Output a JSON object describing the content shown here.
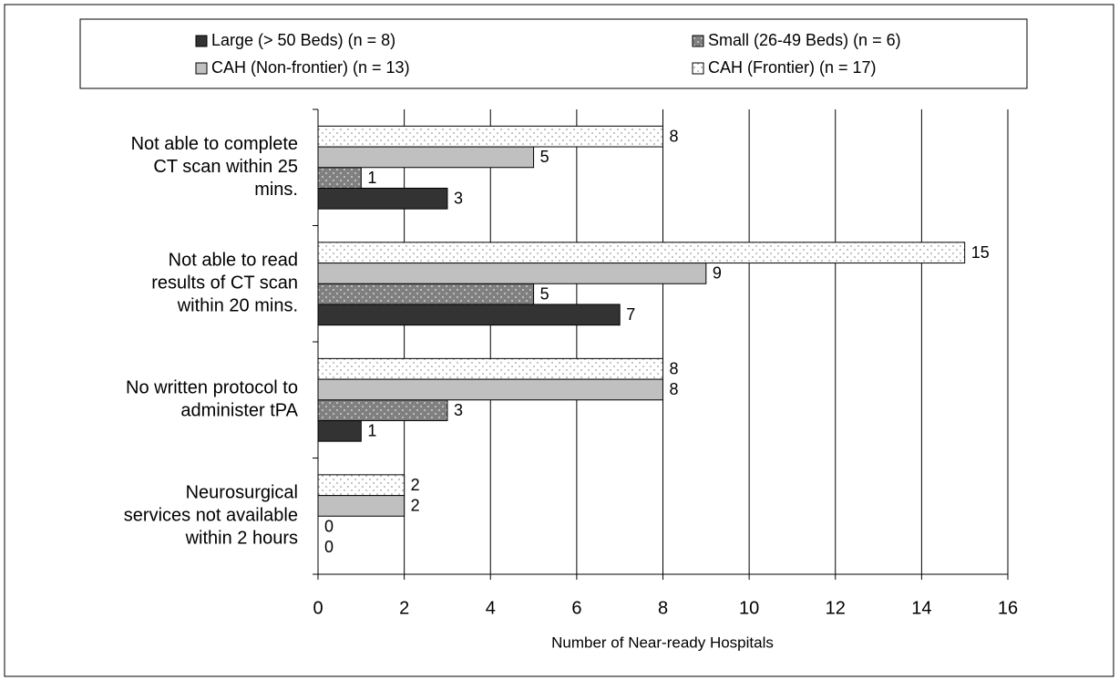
{
  "chart_data": {
    "type": "barh",
    "xlabel": "Number of Near-ready Hospitals",
    "categories": [
      [
        "Not able to complete",
        "CT scan within 25",
        "mins."
      ],
      [
        "Not able to read",
        "results of CT scan",
        "within 20 mins."
      ],
      [
        "No written protocol to",
        "administer tPA"
      ],
      [
        "Neurosurgical",
        "services not available",
        "within 2 hours"
      ]
    ],
    "series": [
      {
        "name": "Large (> 50 Beds) (n = 8)",
        "color": "#333333",
        "values": [
          3,
          7,
          1,
          0
        ]
      },
      {
        "name": "Small (26-49 Beds) (n = 6)",
        "color": "#808080",
        "pattern": "dots",
        "values": [
          1,
          5,
          3,
          0
        ]
      },
      {
        "name": "CAH (Non-frontier) (n = 13)",
        "color": "#c0c0c0",
        "values": [
          5,
          9,
          8,
          2
        ]
      },
      {
        "name": "CAH (Frontier) (n = 17)",
        "color": "#ffffff",
        "pattern": "dots",
        "values": [
          8,
          15,
          8,
          2
        ]
      }
    ],
    "xlim": [
      0,
      16
    ],
    "xticks": [
      0,
      2,
      4,
      6,
      8,
      10,
      12,
      14,
      16
    ],
    "grid": true,
    "legend": "top"
  }
}
